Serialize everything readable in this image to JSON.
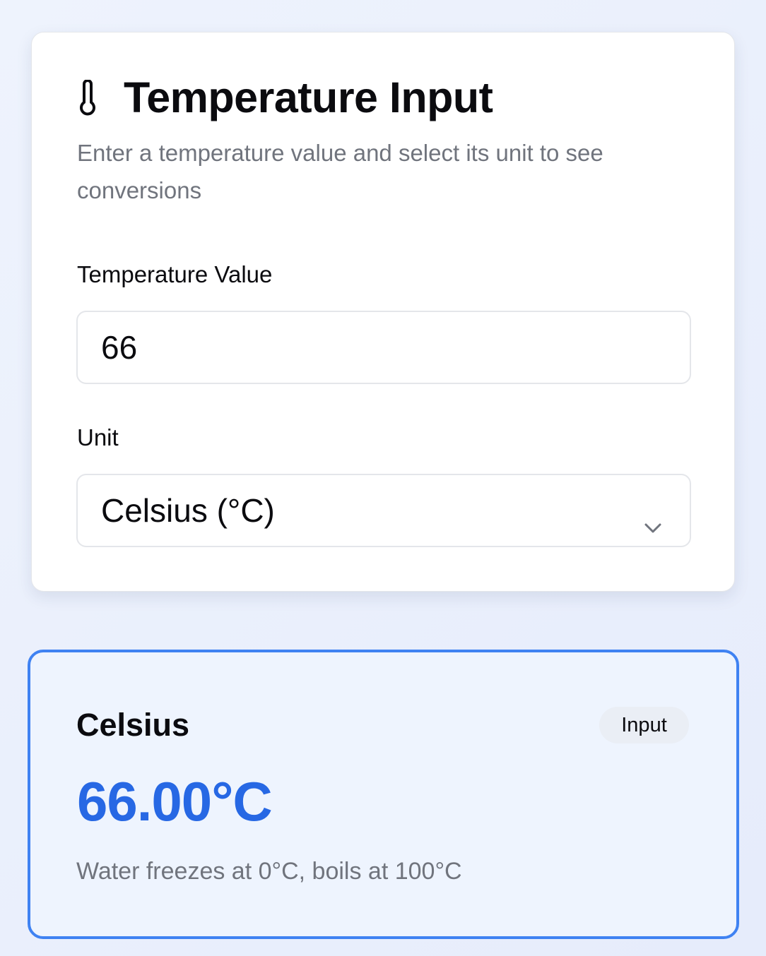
{
  "input_card": {
    "icon": "thermometer-icon",
    "title": "Temperature Input",
    "subtitle": "Enter a temperature value and select its unit to see conversions",
    "value_label": "Temperature Value",
    "value": "66",
    "unit_label": "Unit",
    "unit_selected": "Celsius (°C)"
  },
  "result_card": {
    "title": "Celsius",
    "badge": "Input",
    "value": "66.00°C",
    "note": "Water freezes at 0°C, boils at 100°C"
  },
  "colors": {
    "accent": "#3f82f2",
    "value_text": "#2768e4",
    "muted_text": "#70747d",
    "result_bg": "#eef4fe"
  }
}
